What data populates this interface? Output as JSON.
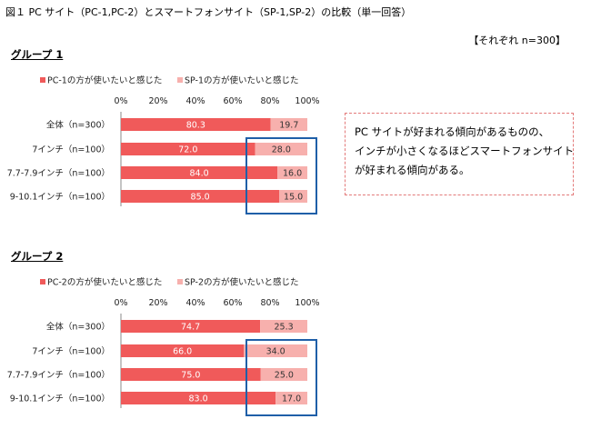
{
  "figure": {
    "title": "図１ PC サイト（PC-1,PC-2）とスマートフォンサイト（SP-1,SP-2）の比較（単一回答）",
    "sample_note": "【それぞれ n=300】",
    "note_lines": [
      "PC サイトが好まれる傾向があるものの、",
      "インチが小さくなるほどスマートフォンサイト",
      "が好まれる傾向がある。"
    ]
  },
  "colors": {
    "pc": "#f05a5a",
    "sp": "#f7b0ad",
    "highlight_box": "#1f5fa8",
    "note_border": "#e37a7a"
  },
  "chart_data": [
    {
      "type": "bar",
      "orientation": "horizontal",
      "stacked": "percent",
      "title": "グループ 1",
      "categories": [
        "全体（n=300）",
        "7インチ（n=100）",
        "7.7-7.9インチ（n=100）",
        "9-10.1インチ（n=100）"
      ],
      "series": [
        {
          "name": "PC-1の方が使いたいと感じた",
          "values": [
            80.3,
            72.0,
            84.0,
            85.0
          ]
        },
        {
          "name": "SP-1の方が使いたいと感じた",
          "values": [
            19.7,
            28.0,
            16.0,
            15.0
          ]
        }
      ],
      "xlim": [
        0,
        100
      ],
      "xticks": [
        "0%",
        "20%",
        "40%",
        "60%",
        "80%",
        "100%"
      ],
      "legend": "top",
      "grid": false
    },
    {
      "type": "bar",
      "orientation": "horizontal",
      "stacked": "percent",
      "title": "グループ 2",
      "categories": [
        "全体（n=300）",
        "7インチ（n=100）",
        "7.7-7.9インチ（n=100）",
        "9-10.1インチ（n=100）"
      ],
      "series": [
        {
          "name": "PC-2の方が使いたいと感じた",
          "values": [
            74.7,
            66.0,
            75.0,
            83.0
          ]
        },
        {
          "name": "SP-2の方が使いたいと感じた",
          "values": [
            25.3,
            34.0,
            25.0,
            17.0
          ]
        }
      ],
      "xlim": [
        0,
        100
      ],
      "xticks": [
        "0%",
        "20%",
        "40%",
        "60%",
        "80%",
        "100%"
      ],
      "legend": "top",
      "grid": false
    }
  ]
}
